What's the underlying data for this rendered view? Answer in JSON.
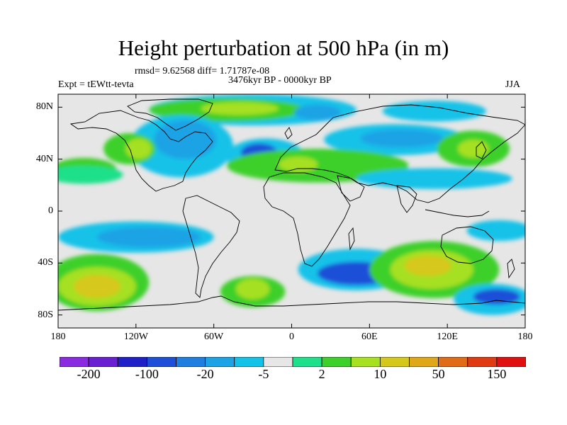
{
  "title": "Height perturbation at 500 hPa (in m)",
  "stats": "rmsd= 9.62568 diff= 1.71787e-08",
  "experiment": "Expt = tEWtt-tevta",
  "period": "3476kyr BP - 0000kyr BP",
  "season": "JJA",
  "map": {
    "projection": "cylindrical-equidistant",
    "lon_range": [
      -180,
      180
    ],
    "lat_range": [
      -90,
      90
    ],
    "lat_ticks": [
      {
        "value": 80,
        "label": "80N"
      },
      {
        "value": 40,
        "label": "40N"
      },
      {
        "value": 0,
        "label": "0"
      },
      {
        "value": -40,
        "label": "40S"
      },
      {
        "value": -80,
        "label": "80S"
      }
    ],
    "lon_ticks": [
      {
        "value": -180,
        "label": "180"
      },
      {
        "value": -120,
        "label": "120W"
      },
      {
        "value": -60,
        "label": "60W"
      },
      {
        "value": 0,
        "label": "0"
      },
      {
        "value": 60,
        "label": "60E"
      },
      {
        "value": 120,
        "label": "120E"
      },
      {
        "value": 180,
        "label": "180"
      }
    ]
  },
  "colorbar": {
    "colors": [
      "#8a2be2",
      "#6a1fd0",
      "#2020c8",
      "#1e4fd8",
      "#1f7fe0",
      "#1ca3e6",
      "#12c2e8",
      "#e6e6e6",
      "#1ee08a",
      "#3ed02a",
      "#a6e020",
      "#d6c81a",
      "#e0a818",
      "#e06c18",
      "#e03a10",
      "#e01010"
    ],
    "labels": [
      "-200",
      "-100",
      "-20",
      "-5",
      "2",
      "10",
      "50",
      "150"
    ]
  },
  "fields": [
    {
      "color": "#12c2e8",
      "lon": -30,
      "lat": 78,
      "rx": 80,
      "ry": 12
    },
    {
      "color": "#3ed02a",
      "lon": -50,
      "lat": 78,
      "rx": 60,
      "ry": 9
    },
    {
      "color": "#a6e020",
      "lon": -40,
      "lat": 79,
      "rx": 30,
      "ry": 5
    },
    {
      "color": "#12c2e8",
      "lon": 110,
      "lat": 77,
      "rx": 40,
      "ry": 8
    },
    {
      "color": "#1ca3e6",
      "lon": 20,
      "lat": 76,
      "rx": 18,
      "ry": 6
    },
    {
      "color": "#12c2e8",
      "lon": -85,
      "lat": 50,
      "rx": 40,
      "ry": 24
    },
    {
      "color": "#1ca3e6",
      "lon": -82,
      "lat": 55,
      "rx": 24,
      "ry": 15
    },
    {
      "color": "#3ed02a",
      "lon": -125,
      "lat": 48,
      "rx": 20,
      "ry": 12
    },
    {
      "color": "#a6e020",
      "lon": -118,
      "lat": 48,
      "rx": 10,
      "ry": 8
    },
    {
      "color": "#12c2e8",
      "lon": -20,
      "lat": 42,
      "rx": 30,
      "ry": 14
    },
    {
      "color": "#1e4fd8",
      "lon": -25,
      "lat": 45,
      "rx": 14,
      "ry": 7
    },
    {
      "color": "#12c2e8",
      "lon": 80,
      "lat": 55,
      "rx": 55,
      "ry": 12
    },
    {
      "color": "#1ca3e6",
      "lon": 85,
      "lat": 56,
      "rx": 32,
      "ry": 7
    },
    {
      "color": "#3ed02a",
      "lon": 20,
      "lat": 35,
      "rx": 70,
      "ry": 13
    },
    {
      "color": "#a6e020",
      "lon": 5,
      "lat": 36,
      "rx": 15,
      "ry": 6
    },
    {
      "color": "#3ed02a",
      "lon": 140,
      "lat": 48,
      "rx": 28,
      "ry": 14
    },
    {
      "color": "#a6e020",
      "lon": 140,
      "lat": 48,
      "rx": 12,
      "ry": 7
    },
    {
      "color": "#3ed02a",
      "lon": -160,
      "lat": 32,
      "rx": 25,
      "ry": 9
    },
    {
      "color": "#1ee08a",
      "lon": -160,
      "lat": 28,
      "rx": 30,
      "ry": 7
    },
    {
      "color": "#12c2e8",
      "lon": 110,
      "lat": 25,
      "rx": 60,
      "ry": 8
    },
    {
      "color": "#12c2e8",
      "lon": -120,
      "lat": -20,
      "rx": 60,
      "ry": 12
    },
    {
      "color": "#1ca3e6",
      "lon": -110,
      "lat": -20,
      "rx": 40,
      "ry": 8
    },
    {
      "color": "#12c2e8",
      "lon": 160,
      "lat": -15,
      "rx": 25,
      "ry": 8
    },
    {
      "color": "#3ed02a",
      "lon": -150,
      "lat": -55,
      "rx": 40,
      "ry": 22
    },
    {
      "color": "#a6e020",
      "lon": -150,
      "lat": -58,
      "rx": 30,
      "ry": 15
    },
    {
      "color": "#d6c81a",
      "lon": -150,
      "lat": -58,
      "rx": 18,
      "ry": 9
    },
    {
      "color": "#3ed02a",
      "lon": -30,
      "lat": -62,
      "rx": 25,
      "ry": 12
    },
    {
      "color": "#a6e020",
      "lon": -30,
      "lat": -60,
      "rx": 13,
      "ry": 8
    },
    {
      "color": "#12c2e8",
      "lon": 50,
      "lat": -45,
      "rx": 45,
      "ry": 16
    },
    {
      "color": "#1e4fd8",
      "lon": 50,
      "lat": -48,
      "rx": 30,
      "ry": 9
    },
    {
      "color": "#3ed02a",
      "lon": 110,
      "lat": -45,
      "rx": 50,
      "ry": 22
    },
    {
      "color": "#a6e020",
      "lon": 108,
      "lat": -45,
      "rx": 32,
      "ry": 15
    },
    {
      "color": "#d6c81a",
      "lon": 105,
      "lat": -42,
      "rx": 18,
      "ry": 8
    },
    {
      "color": "#12c2e8",
      "lon": 155,
      "lat": -68,
      "rx": 30,
      "ry": 12
    },
    {
      "color": "#1e4fd8",
      "lon": 158,
      "lat": -66,
      "rx": 18,
      "ry": 6
    }
  ]
}
